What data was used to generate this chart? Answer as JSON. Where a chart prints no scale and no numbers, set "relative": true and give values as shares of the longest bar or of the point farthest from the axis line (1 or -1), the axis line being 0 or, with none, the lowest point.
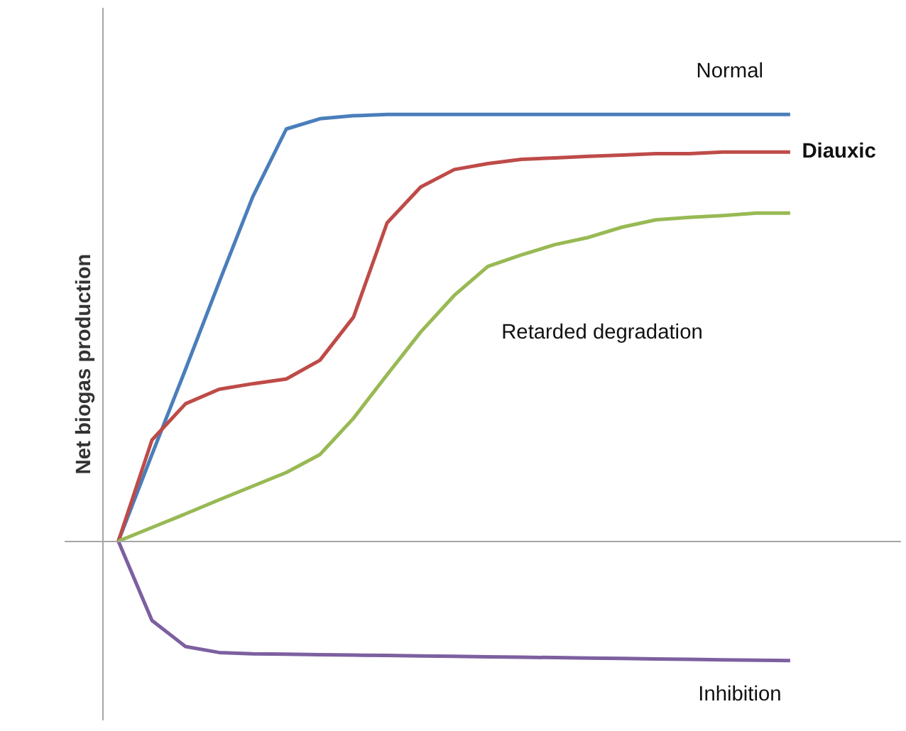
{
  "chart_data": {
    "type": "line",
    "relative": true,
    "ylabel": "Net biogas production",
    "legend": false,
    "categories": [
      null,
      null,
      null,
      null,
      null,
      null,
      null,
      null,
      null,
      null,
      null,
      null,
      null,
      null,
      null,
      null,
      null,
      null,
      null,
      null,
      null
    ],
    "series": [
      {
        "name": "Normal",
        "color": "#4a7ebb",
        "values": [
          0,
          0.203,
          0.403,
          0.607,
          0.807,
          0.966,
          0.99,
          0.997,
          1,
          1,
          1,
          1,
          1,
          1,
          1,
          1,
          1,
          1,
          1,
          1,
          1
        ]
      },
      {
        "name": "Diauxic",
        "color": "#be4b48",
        "values": [
          0,
          0.237,
          0.322,
          0.356,
          0.369,
          0.38,
          0.424,
          0.525,
          0.746,
          0.83,
          0.871,
          0.885,
          0.895,
          0.898,
          0.902,
          0.905,
          0.908,
          0.908,
          0.912,
          0.912,
          0.912
        ]
      },
      {
        "name": "Retarded degradation",
        "color": "#98b954",
        "values": [
          0,
          0.032,
          0.064,
          0.097,
          0.129,
          0.161,
          0.203,
          0.288,
          0.39,
          0.49,
          0.576,
          0.644,
          0.671,
          0.695,
          0.712,
          0.736,
          0.753,
          0.759,
          0.763,
          0.769,
          0.769
        ]
      },
      {
        "name": "Inhibition",
        "color": "#7d60a0",
        "values": [
          0,
          -0.186,
          -0.247,
          -0.261,
          -0.264,
          -0.265,
          -0.266,
          -0.267,
          -0.268,
          -0.269,
          -0.27,
          -0.271,
          -0.272,
          -0.273,
          -0.274,
          -0.275,
          -0.276,
          -0.277,
          -0.278,
          -0.279,
          -0.28
        ]
      }
    ]
  }
}
